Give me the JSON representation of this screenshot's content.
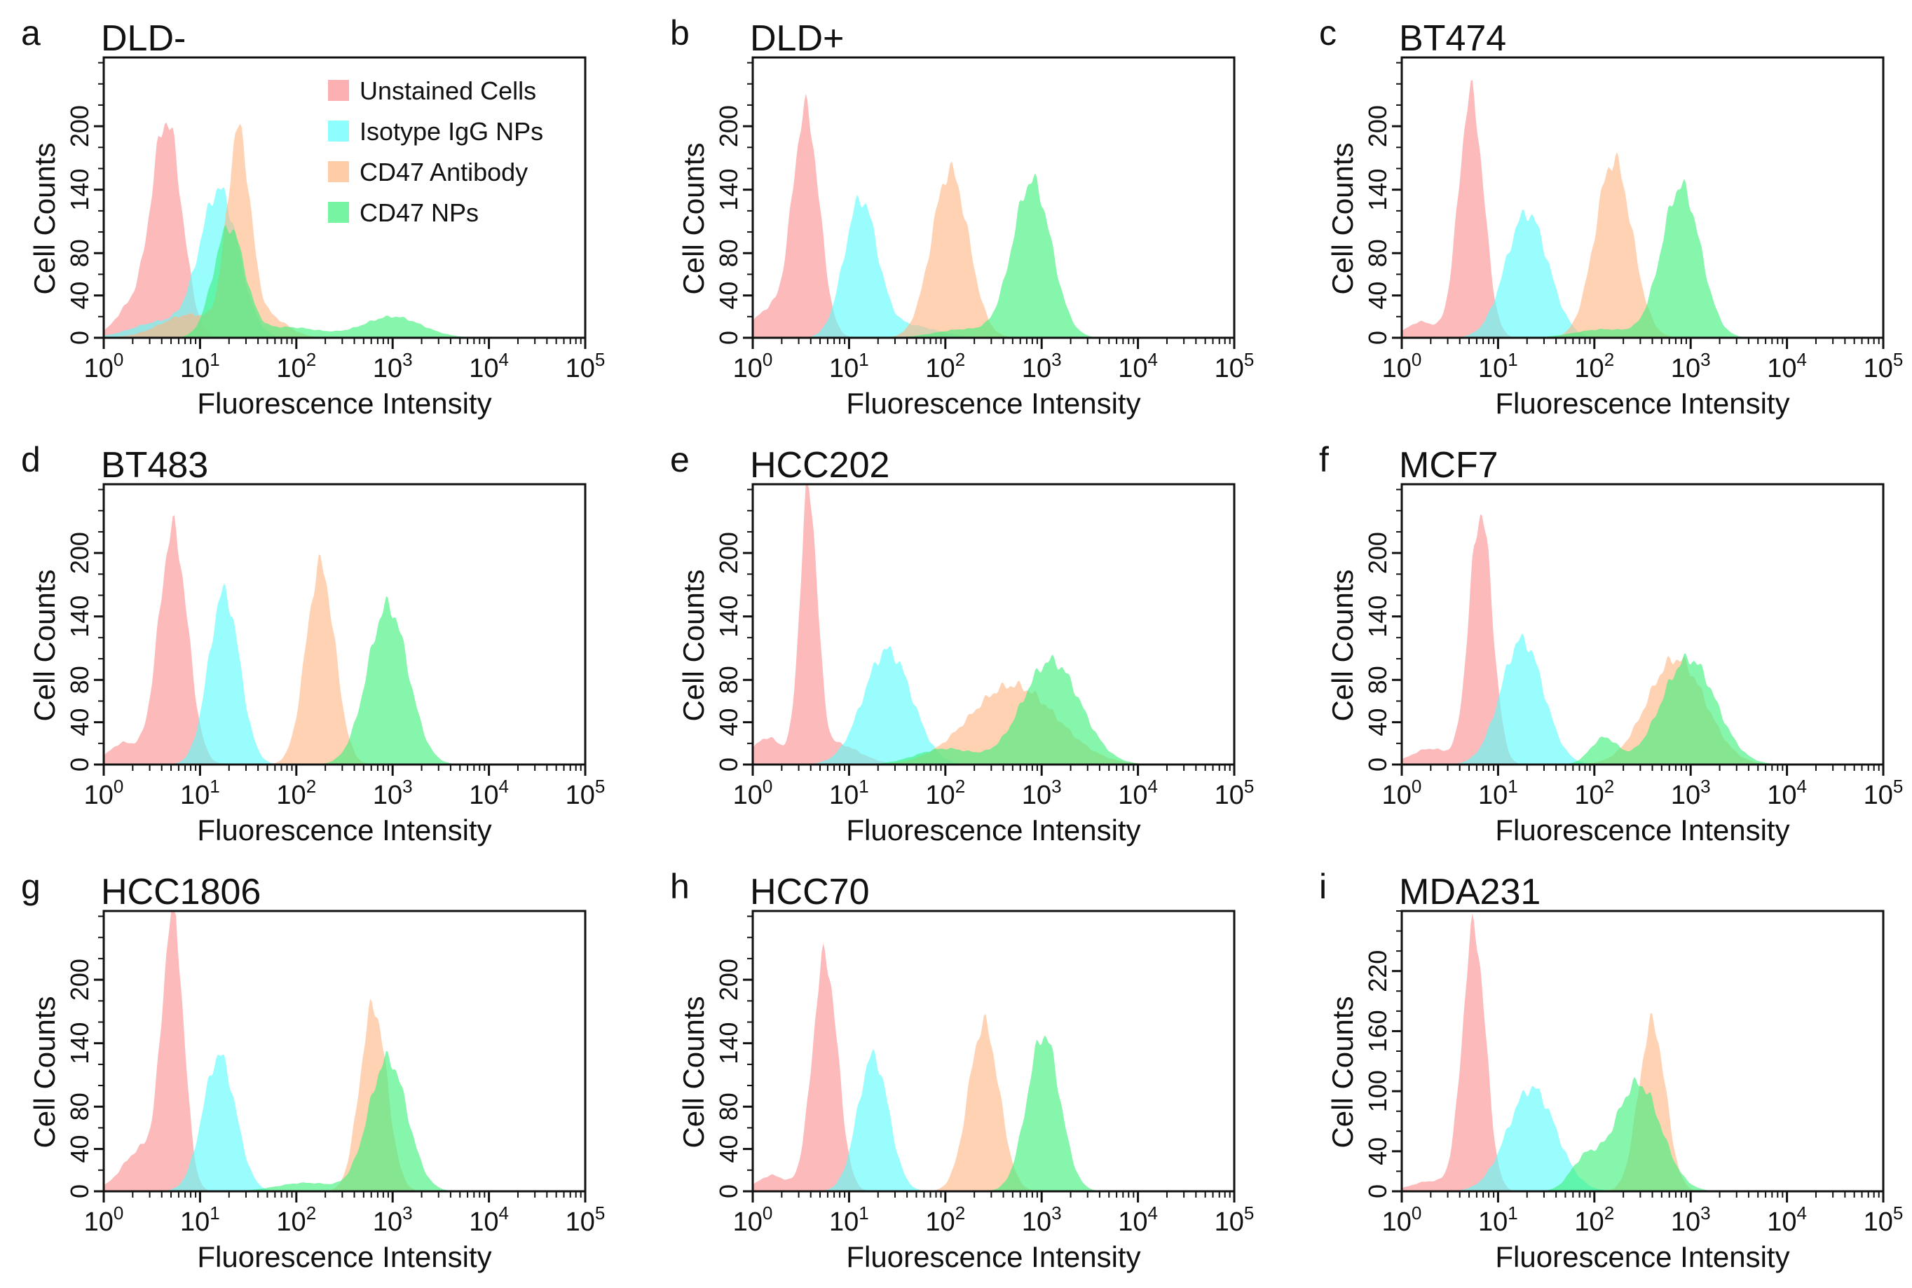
{
  "chart_data": {
    "type": "area",
    "title": "",
    "xlabel": "Fluorescence Intensity",
    "ylabel": "Cell Counts",
    "xscale": "log10",
    "xlim_log10": [
      0,
      5
    ],
    "x_tick_labels": [
      [
        "10",
        "0"
      ],
      [
        "10",
        "1"
      ],
      [
        "10",
        "2"
      ],
      [
        "10",
        "3"
      ],
      [
        "10",
        "4"
      ],
      [
        "10",
        "5"
      ]
    ],
    "legend": {
      "placement": "top-right",
      "panel": "a",
      "entries": [
        "Unstained Cells",
        "Isotype IgG NPs",
        "CD47 Antibody",
        "CD47 NPs"
      ]
    },
    "series_colors": {
      "Unstained Cells": "#fb8f92",
      "Isotype IgG NPs": "#5cfcfc",
      "CD47 Antibody": "#fdb682",
      "CD47 NPs": "#3cf07a"
    },
    "series_note": "each series described as gaussian components in log10(intensity): center, height (cell counts), sd",
    "panels": [
      {
        "letter": "a",
        "title": "DLD-",
        "ylim": [
          0,
          265
        ],
        "yticks": [
          0,
          40,
          80,
          140,
          200
        ],
        "legend": true,
        "series": [
          {
            "name": "Unstained Cells",
            "peaks": [
              [
                0.65,
                205,
                0.16
              ],
              [
                0.25,
                25,
                0.15
              ]
            ]
          },
          {
            "name": "Isotype IgG NPs",
            "peaks": [
              [
                1.2,
                138,
                0.2
              ],
              [
                0.6,
                15,
                0.3
              ]
            ]
          },
          {
            "name": "CD47 Antibody",
            "peaks": [
              [
                1.4,
                185,
                0.12
              ],
              [
                0.9,
                22,
                0.3
              ],
              [
                1.7,
                20,
                0.2
              ]
            ]
          },
          {
            "name": "CD47 NPs",
            "peaks": [
              [
                1.3,
                103,
                0.16
              ],
              [
                1.9,
                10,
                0.35
              ],
              [
                3.0,
                20,
                0.3
              ]
            ]
          }
        ]
      },
      {
        "letter": "b",
        "title": "DLD+",
        "ylim": [
          0,
          265
        ],
        "yticks": [
          0,
          40,
          80,
          140,
          200
        ],
        "series": [
          {
            "name": "Unstained Cells",
            "peaks": [
              [
                0.55,
                215,
                0.14
              ],
              [
                0.15,
                25,
                0.15
              ]
            ]
          },
          {
            "name": "Isotype IgG NPs",
            "peaks": [
              [
                1.12,
                128,
                0.17
              ],
              [
                1.6,
                12,
                0.3
              ]
            ]
          },
          {
            "name": "CD47 Antibody",
            "peaks": [
              [
                2.05,
                158,
                0.19
              ]
            ]
          },
          {
            "name": "CD47 NPs",
            "peaks": [
              [
                2.9,
                148,
                0.2
              ],
              [
                2.2,
                8,
                0.3
              ]
            ]
          }
        ]
      },
      {
        "letter": "c",
        "title": "BT474",
        "ylim": [
          0,
          265
        ],
        "yticks": [
          0,
          40,
          80,
          140,
          200
        ],
        "series": [
          {
            "name": "Unstained Cells",
            "peaks": [
              [
                0.72,
                230,
                0.13
              ],
              [
                0.2,
                15,
                0.15
              ]
            ]
          },
          {
            "name": "Isotype IgG NPs",
            "peaks": [
              [
                1.3,
                118,
                0.22
              ]
            ]
          },
          {
            "name": "CD47 Antibody",
            "peaks": [
              [
                2.2,
                168,
                0.19
              ]
            ]
          },
          {
            "name": "CD47 NPs",
            "peaks": [
              [
                2.9,
                143,
                0.2
              ],
              [
                2.1,
                8,
                0.3
              ]
            ]
          }
        ]
      },
      {
        "letter": "d",
        "title": "BT483",
        "ylim": [
          0,
          265
        ],
        "yticks": [
          0,
          40,
          80,
          140,
          200
        ],
        "series": [
          {
            "name": "Unstained Cells",
            "peaks": [
              [
                0.72,
                222,
                0.15
              ],
              [
                0.2,
                20,
                0.15
              ]
            ]
          },
          {
            "name": "Isotype IgG NPs",
            "peaks": [
              [
                1.25,
                163,
                0.16
              ]
            ]
          },
          {
            "name": "CD47 Antibody",
            "peaks": [
              [
                2.25,
                188,
                0.15
              ]
            ]
          },
          {
            "name": "CD47 NPs",
            "peaks": [
              [
                2.95,
                150,
                0.21
              ]
            ]
          }
        ]
      },
      {
        "letter": "e",
        "title": "HCC202",
        "ylim": [
          0,
          265
        ],
        "yticks": [
          0,
          40,
          80,
          140,
          200
        ],
        "series": [
          {
            "name": "Unstained Cells",
            "peaks": [
              [
                0.58,
                250,
                0.09
              ],
              [
                0.15,
                25,
                0.15
              ],
              [
                0.85,
                20,
                0.25
              ]
            ]
          },
          {
            "name": "Isotype IgG NPs",
            "peaks": [
              [
                1.4,
                108,
                0.25
              ]
            ]
          },
          {
            "name": "CD47 Antibody",
            "peaks": [
              [
                2.7,
                75,
                0.45
              ]
            ]
          },
          {
            "name": "CD47 NPs",
            "peaks": [
              [
                3.1,
                98,
                0.3
              ],
              [
                2.0,
                15,
                0.3
              ]
            ]
          }
        ]
      },
      {
        "letter": "f",
        "title": "MCF7",
        "ylim": [
          0,
          265
        ],
        "yticks": [
          0,
          40,
          80,
          140,
          200
        ],
        "series": [
          {
            "name": "Unstained Cells",
            "peaks": [
              [
                0.82,
                238,
                0.12
              ],
              [
                0.3,
                15,
                0.2
              ]
            ]
          },
          {
            "name": "Isotype IgG NPs",
            "peaks": [
              [
                1.25,
                118,
                0.22
              ]
            ]
          },
          {
            "name": "CD47 Antibody",
            "peaks": [
              [
                2.85,
                100,
                0.3
              ]
            ]
          },
          {
            "name": "CD47 NPs",
            "peaks": [
              [
                2.98,
                100,
                0.28
              ],
              [
                2.1,
                25,
                0.14
              ]
            ]
          }
        ]
      },
      {
        "letter": "g",
        "title": "HCC1806",
        "ylim": [
          0,
          265
        ],
        "yticks": [
          0,
          40,
          80,
          140,
          200
        ],
        "series": [
          {
            "name": "Unstained Cells",
            "peaks": [
              [
                0.72,
                255,
                0.11
              ],
              [
                0.4,
                40,
                0.2
              ]
            ]
          },
          {
            "name": "Isotype IgG NPs",
            "peaks": [
              [
                1.2,
                128,
                0.17
              ]
            ]
          },
          {
            "name": "CD47 Antibody",
            "peaks": [
              [
                2.8,
                175,
                0.14
              ]
            ]
          },
          {
            "name": "CD47 NPs",
            "peaks": [
              [
                2.95,
                125,
                0.2
              ],
              [
                2.1,
                8,
                0.3
              ]
            ]
          }
        ]
      },
      {
        "letter": "h",
        "title": "HCC70",
        "ylim": [
          0,
          265
        ],
        "yticks": [
          0,
          40,
          80,
          140,
          200
        ],
        "series": [
          {
            "name": "Unstained Cells",
            "peaks": [
              [
                0.75,
                222,
                0.13
              ],
              [
                0.2,
                15,
                0.15
              ]
            ]
          },
          {
            "name": "Isotype IgG NPs",
            "peaks": [
              [
                1.25,
                128,
                0.16
              ]
            ]
          },
          {
            "name": "CD47 Antibody",
            "peaks": [
              [
                2.4,
                158,
                0.16
              ]
            ]
          },
          {
            "name": "CD47 NPs",
            "peaks": [
              [
                3.02,
                148,
                0.17
              ]
            ]
          }
        ]
      },
      {
        "letter": "i",
        "title": "MDA231",
        "ylim": [
          0,
          280
        ],
        "yticks": [
          0,
          40,
          100,
          160,
          220
        ],
        "series": [
          {
            "name": "Unstained Cells",
            "peaks": [
              [
                0.75,
                262,
                0.12
              ],
              [
                0.3,
                10,
                0.2
              ]
            ]
          },
          {
            "name": "Isotype IgG NPs",
            "peaks": [
              [
                1.35,
                103,
                0.25
              ]
            ]
          },
          {
            "name": "CD47 Antibody",
            "peaks": [
              [
                2.6,
                168,
                0.14
              ]
            ]
          },
          {
            "name": "CD47 NPs",
            "peaks": [
              [
                2.45,
                108,
                0.24
              ],
              [
                1.9,
                30,
                0.15
              ]
            ]
          }
        ]
      }
    ]
  }
}
